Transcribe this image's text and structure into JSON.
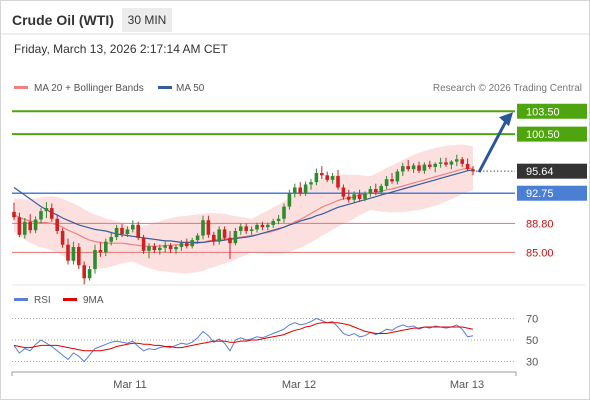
{
  "header": {
    "title": "Crude Oil (WTI)",
    "timeframe": "30 MIN",
    "datetime": "Friday, March 13, 2026 2:17:14 AM CET"
  },
  "legend": [
    {
      "label": "MA 20 + Bollinger Bands",
      "color": "#f08080"
    },
    {
      "label": "MA 50",
      "color": "#3a5a9c"
    }
  ],
  "credit": "Research © 2026 Trading Central",
  "rsi_legend": [
    {
      "label": "RSI",
      "color": "#5b7fd6"
    },
    {
      "label": "9MA",
      "color": "#e00000"
    }
  ],
  "colors": {
    "bull": "#2e8b2e",
    "bear": "#cc2222",
    "target": "#4ea50f",
    "support": "#e57373",
    "pivot": "#4a7fd4",
    "last": "#333333",
    "band": "#fbd5d5",
    "arrow": "#2b5797"
  },
  "chart_data": [
    {
      "type": "candlestick",
      "title": "Crude Oil (WTI)",
      "timeframe": "30 MIN",
      "x_labels": [
        "Mar 11",
        "Mar 12",
        "Mar 13"
      ],
      "ylim": [
        81.5,
        105.5
      ],
      "levels": [
        {
          "value": 103.5,
          "label": "103.50",
          "kind": "target"
        },
        {
          "value": 100.5,
          "label": "100.50",
          "kind": "target"
        },
        {
          "value": 95.64,
          "label": "95.64",
          "kind": "last"
        },
        {
          "value": 92.75,
          "label": "92.75",
          "kind": "pivot"
        },
        {
          "value": 88.8,
          "label": "88.80",
          "kind": "support"
        },
        {
          "value": 85.0,
          "label": "85.00",
          "kind": "support"
        }
      ],
      "ohlc": [
        [
          90.3,
          91.5,
          89.2,
          89.6
        ],
        [
          89.6,
          90.2,
          87.0,
          87.3
        ],
        [
          87.3,
          89.5,
          86.8,
          89.0
        ],
        [
          89.0,
          90.0,
          87.5,
          87.9
        ],
        [
          87.9,
          89.7,
          87.5,
          89.3
        ],
        [
          89.3,
          90.8,
          88.8,
          90.4
        ],
        [
          90.4,
          91.6,
          89.5,
          90.8
        ],
        [
          90.8,
          91.4,
          89.0,
          89.4
        ],
        [
          89.4,
          89.9,
          87.4,
          87.8
        ],
        [
          87.8,
          88.2,
          85.6,
          86.0
        ],
        [
          86.0,
          86.8,
          83.4,
          83.9
        ],
        [
          83.9,
          86.4,
          83.4,
          85.7
        ],
        [
          85.7,
          86.2,
          82.8,
          83.3
        ],
        [
          83.3,
          83.8,
          80.8,
          81.6
        ],
        [
          81.6,
          83.2,
          81.3,
          82.8
        ],
        [
          82.8,
          86.0,
          82.2,
          85.3
        ],
        [
          85.3,
          86.3,
          84.4,
          85.0
        ],
        [
          85.0,
          86.8,
          84.5,
          86.4
        ],
        [
          86.4,
          87.6,
          85.9,
          87.0
        ],
        [
          87.0,
          88.6,
          86.6,
          88.2
        ],
        [
          88.2,
          88.7,
          87.0,
          87.4
        ],
        [
          87.4,
          88.4,
          87.0,
          88.0
        ],
        [
          88.0,
          89.2,
          87.6,
          88.6
        ],
        [
          88.6,
          89.0,
          86.6,
          86.9
        ],
        [
          86.9,
          87.3,
          84.8,
          85.2
        ],
        [
          85.2,
          86.2,
          84.2,
          85.8
        ],
        [
          85.8,
          86.2,
          84.9,
          85.3
        ],
        [
          85.3,
          86.0,
          84.7,
          85.6
        ],
        [
          85.6,
          86.4,
          85.0,
          85.9
        ],
        [
          85.9,
          86.2,
          84.9,
          85.4
        ],
        [
          85.4,
          86.0,
          84.8,
          85.7
        ],
        [
          85.7,
          86.6,
          85.2,
          86.2
        ],
        [
          86.2,
          86.8,
          85.5,
          85.8
        ],
        [
          85.8,
          86.9,
          85.5,
          86.6
        ],
        [
          86.6,
          87.5,
          86.1,
          87.2
        ],
        [
          87.2,
          89.8,
          86.7,
          89.2
        ],
        [
          89.2,
          89.8,
          86.9,
          87.3
        ],
        [
          87.3,
          87.7,
          85.9,
          86.4
        ],
        [
          86.4,
          88.4,
          86.0,
          88.0
        ],
        [
          88.0,
          88.4,
          86.6,
          86.9
        ],
        [
          86.9,
          87.8,
          84.1,
          86.2
        ],
        [
          86.2,
          88.2,
          85.9,
          87.8
        ],
        [
          87.8,
          88.8,
          87.3,
          88.4
        ],
        [
          88.4,
          88.8,
          87.4,
          87.8
        ],
        [
          87.8,
          88.4,
          87.3,
          88.0
        ],
        [
          88.0,
          88.9,
          87.6,
          88.6
        ],
        [
          88.6,
          89.0,
          87.9,
          88.3
        ],
        [
          88.3,
          88.9,
          87.9,
          88.6
        ],
        [
          88.6,
          89.4,
          88.2,
          89.1
        ],
        [
          89.1,
          89.9,
          88.7,
          89.4
        ],
        [
          89.4,
          91.4,
          88.9,
          91.0
        ],
        [
          91.0,
          93.2,
          90.6,
          92.8
        ],
        [
          92.8,
          94.0,
          92.2,
          93.5
        ],
        [
          93.5,
          94.2,
          92.4,
          92.8
        ],
        [
          92.8,
          94.3,
          92.4,
          93.9
        ],
        [
          93.9,
          94.6,
          93.2,
          94.2
        ],
        [
          94.2,
          96.0,
          93.8,
          95.4
        ],
        [
          95.4,
          96.3,
          94.6,
          95.1
        ],
        [
          95.1,
          95.6,
          94.2,
          94.5
        ],
        [
          94.5,
          95.4,
          94.0,
          95.0
        ],
        [
          95.0,
          95.8,
          93.2,
          93.5
        ],
        [
          93.5,
          93.9,
          91.9,
          92.3
        ],
        [
          92.3,
          93.2,
          91.5,
          91.9
        ],
        [
          91.9,
          93.0,
          91.4,
          92.6
        ],
        [
          92.6,
          93.2,
          91.6,
          92.0
        ],
        [
          92.0,
          93.0,
          91.7,
          92.7
        ],
        [
          92.7,
          93.7,
          92.3,
          93.3
        ],
        [
          93.3,
          94.0,
          92.5,
          92.9
        ],
        [
          92.9,
          94.0,
          92.5,
          93.7
        ],
        [
          93.7,
          95.0,
          93.3,
          94.6
        ],
        [
          94.6,
          95.4,
          94.0,
          94.3
        ],
        [
          94.3,
          95.9,
          93.9,
          95.6
        ],
        [
          95.6,
          96.7,
          95.0,
          96.3
        ],
        [
          96.3,
          97.1,
          95.6,
          95.9
        ],
        [
          95.9,
          96.7,
          95.4,
          96.4
        ],
        [
          96.4,
          96.9,
          95.4,
          95.7
        ],
        [
          95.7,
          96.8,
          95.3,
          96.5
        ],
        [
          96.5,
          97.0,
          95.9,
          96.2
        ],
        [
          96.2,
          96.8,
          95.5,
          96.6
        ],
        [
          96.6,
          97.4,
          96.1,
          96.8
        ],
        [
          96.8,
          97.4,
          96.2,
          96.5
        ],
        [
          96.5,
          97.1,
          95.9,
          96.9
        ],
        [
          96.9,
          97.8,
          96.3,
          97.2
        ],
        [
          97.2,
          97.5,
          96.2,
          96.6
        ],
        [
          96.6,
          97.3,
          95.7,
          95.9
        ],
        [
          95.9,
          96.3,
          95.1,
          95.6
        ]
      ],
      "series": [
        {
          "name": "MA 20",
          "values": [
            89.9,
            89.6,
            89.3,
            89.1,
            89.0,
            88.9,
            88.9,
            88.8,
            88.6,
            88.3,
            87.9,
            87.6,
            87.3,
            86.9,
            86.6,
            86.4,
            86.3,
            86.2,
            86.2,
            86.2,
            86.2,
            86.1,
            86.0,
            85.9,
            85.8,
            85.8,
            85.8,
            85.8,
            85.9,
            85.9,
            86.0,
            86.0,
            86.0,
            86.1,
            86.2,
            86.3,
            86.5,
            86.6,
            86.7,
            86.8,
            86.8,
            86.9,
            87.0,
            87.1,
            87.2,
            87.3,
            87.5,
            87.6,
            87.8,
            88.0,
            88.3,
            88.6,
            89.0,
            89.3,
            89.7,
            90.1,
            90.5,
            90.9,
            91.2,
            91.5,
            91.8,
            92.0,
            92.1,
            92.3,
            92.5,
            92.6,
            92.8,
            92.9,
            93.0,
            93.2,
            93.3,
            93.5,
            93.7,
            93.9,
            94.1,
            94.3,
            94.5,
            94.7,
            94.9,
            95.1,
            95.3,
            95.5,
            95.7,
            95.9,
            96.0,
            96.0
          ]
        },
        {
          "name": "MA 50",
          "values": [
            93.5,
            93.0,
            92.5,
            92.0,
            91.5,
            91.0,
            90.6,
            90.2,
            89.9,
            89.5,
            89.2,
            88.9,
            88.6,
            88.4,
            88.2,
            88.0,
            87.9,
            87.8,
            87.6,
            87.4,
            87.3,
            87.2,
            87.1,
            87.0,
            86.9,
            86.8,
            86.7,
            86.6,
            86.5,
            86.5,
            86.4,
            86.3,
            86.3,
            86.3,
            86.3,
            86.3,
            86.4,
            86.5,
            86.5,
            86.6,
            86.7,
            86.8,
            86.9,
            87.0,
            87.1,
            87.3,
            87.5,
            87.7,
            87.9,
            88.1,
            88.3,
            88.6,
            88.8,
            89.1,
            89.3,
            89.5,
            89.8,
            90.0,
            90.3,
            90.6,
            90.9,
            91.1,
            91.3,
            91.5,
            91.7,
            91.9,
            92.1,
            92.3,
            92.5,
            92.7,
            92.9,
            93.1,
            93.3,
            93.5,
            93.7,
            93.9,
            94.1,
            94.3,
            94.5,
            94.7,
            94.9,
            95.1,
            95.3,
            95.5,
            95.7,
            95.8
          ]
        }
      ]
    },
    {
      "type": "line",
      "title": "",
      "ylim": [
        25,
        75
      ],
      "y_ticks": [
        70,
        50,
        30
      ],
      "series": [
        {
          "name": "RSI",
          "values": [
            45,
            38,
            42,
            40,
            46,
            50,
            47,
            44,
            40,
            36,
            32,
            38,
            35,
            30,
            36,
            42,
            44,
            46,
            48,
            49,
            48,
            47,
            49,
            44,
            40,
            42,
            41,
            43,
            44,
            43,
            45,
            47,
            46,
            48,
            52,
            58,
            54,
            48,
            51,
            47,
            40,
            50,
            52,
            50,
            51,
            53,
            52,
            54,
            56,
            58,
            60,
            64,
            66,
            64,
            65,
            67,
            70,
            68,
            66,
            67,
            62,
            56,
            54,
            56,
            53,
            54,
            57,
            55,
            57,
            60,
            59,
            62,
            64,
            62,
            63,
            60,
            62,
            61,
            63,
            62,
            61,
            62,
            64,
            60,
            53,
            54
          ]
        },
        {
          "name": "9MA",
          "values": [
            45,
            44,
            43,
            43,
            44,
            45,
            45,
            45,
            45,
            44,
            43,
            42,
            41,
            40,
            40,
            40,
            40,
            41,
            42,
            44,
            45,
            46,
            47,
            47,
            46,
            46,
            45,
            45,
            44,
            44,
            43,
            43,
            44,
            45,
            46,
            47,
            48,
            49,
            49,
            49,
            48,
            48,
            49,
            49,
            50,
            50,
            51,
            52,
            53,
            54,
            55,
            57,
            59,
            60,
            62,
            63,
            65,
            66,
            66,
            66,
            66,
            65,
            64,
            62,
            60,
            58,
            57,
            56,
            56,
            56,
            57,
            58,
            59,
            60,
            61,
            61,
            62,
            62,
            62,
            62,
            62,
            62,
            62,
            62,
            61,
            60
          ]
        }
      ]
    }
  ]
}
